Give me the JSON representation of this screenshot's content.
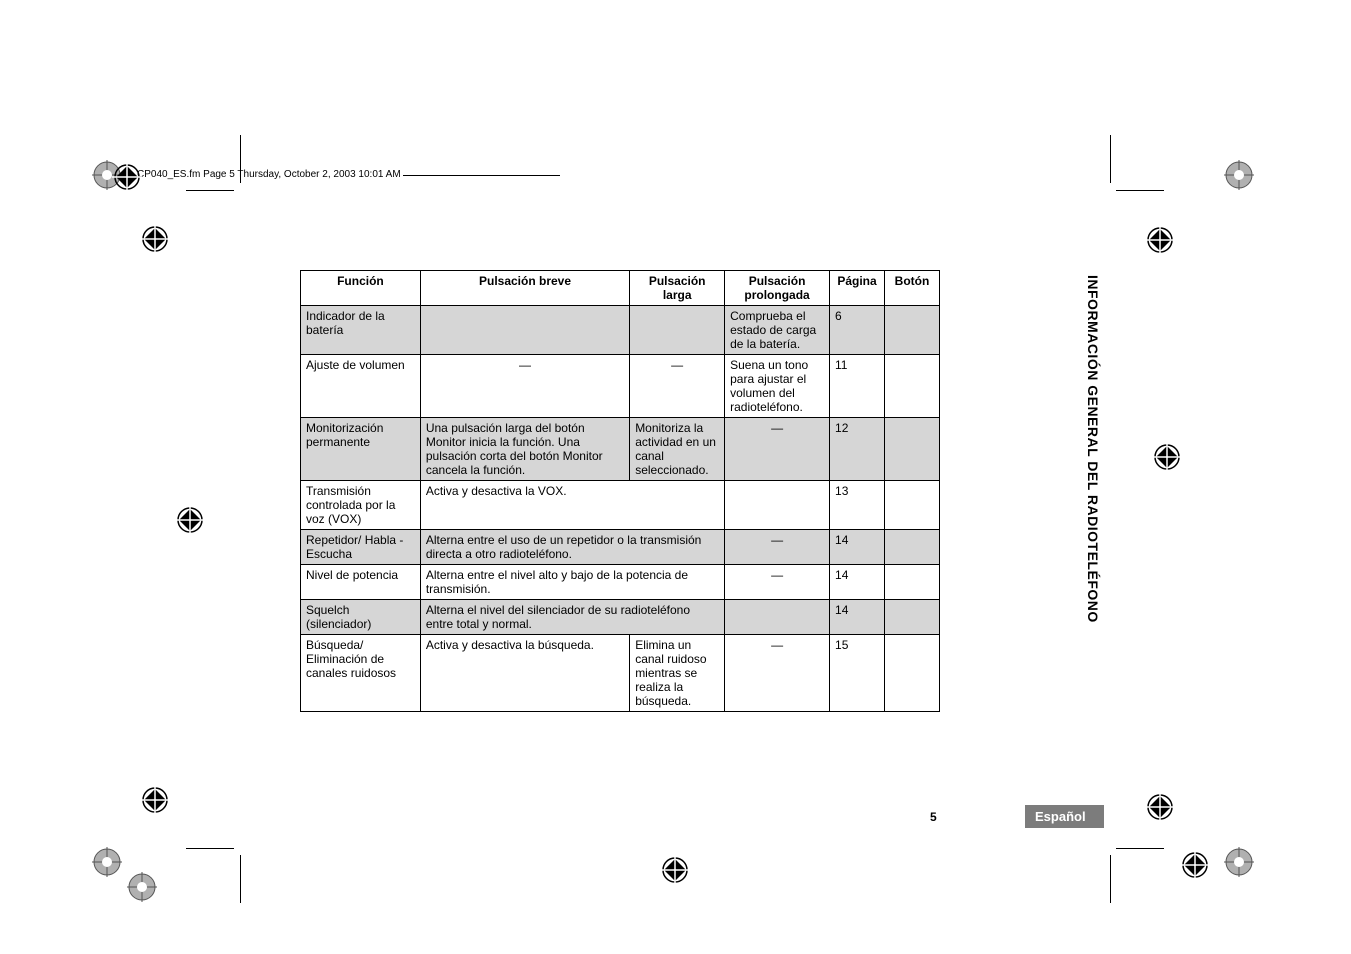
{
  "header_text": "CP040_ES.fm  Page 5  Thursday, October 2, 2003  10:01 AM",
  "sidebar_label": "INFORMACIÓN GENERAL DEL RADIOTELÉFONO",
  "page_number": "5",
  "language_badge": "Español",
  "table": {
    "headers": {
      "c1": "Función",
      "c2": "Pulsación breve",
      "c3": "Pulsación larga",
      "c4": "Pulsación prolongada",
      "c5": "Página",
      "c6": "Botón"
    },
    "rows": [
      {
        "shaded": true,
        "c1": "Indicador de la batería",
        "c2": "",
        "c3": "",
        "c4": "Comprueba el estado de carga de la batería.",
        "c5": "6",
        "c6": "",
        "span23": false
      },
      {
        "shaded": false,
        "c1": "Ajuste de volumen",
        "c2": "—",
        "c3": "—",
        "c4": "Suena un tono para ajustar el volumen del radioteléfono.",
        "c5": "11",
        "c6": "",
        "span23": false
      },
      {
        "shaded": true,
        "c1": "Monitorización permanente",
        "c2": "Una pulsación larga del botón Monitor inicia la función. Una pulsación corta del botón Monitor cancela la función.",
        "c3": "Monitoriza la actividad en un canal seleccionado.",
        "c4": "—",
        "c5": "12",
        "c6": "",
        "span23": false
      },
      {
        "shaded": false,
        "c1": "Transmisión controlada por la voz (VOX)",
        "c2_3": "Activa y desactiva la VOX.",
        "c4": "",
        "c5": "13",
        "c6": "",
        "span23": true
      },
      {
        "shaded": true,
        "c1": "Repetidor/ Habla - Escucha",
        "c2_3": "Alterna entre el uso de un repetidor o la transmisión directa a otro radioteléfono.",
        "c4": "—",
        "c5": "14",
        "c6": "",
        "span23": true
      },
      {
        "shaded": false,
        "c1": "Nivel de potencia",
        "c2_3": "Alterna entre el nivel alto y bajo de la potencia de transmisión.",
        "c4": "—",
        "c5": "14",
        "c6": "",
        "span23": true
      },
      {
        "shaded": true,
        "c1": "Squelch (silenciador)",
        "c2_3": "Alterna el nivel del silenciador de su radioteléfono entre total y normal.",
        "c4": "",
        "c5": "14",
        "c6": "",
        "span23": true
      },
      {
        "shaded": false,
        "c1": "Búsqueda/ Eliminación de canales ruidosos",
        "c2": "Activa y desactiva la búsqueda.",
        "c3": "Elimina un canal ruidoso mientras se realiza la búsqueda.",
        "c4": "—",
        "c5": "15",
        "c6": "",
        "span23": false
      }
    ]
  },
  "colors": {
    "shaded_bg": "#d6d6d6",
    "badge_bg": "#7c7c7c",
    "text": "#000000",
    "badge_text": "#ffffff"
  },
  "col_widths": {
    "c1": 120,
    "c2": 210,
    "c3": 95,
    "c4": 105,
    "c5": 55,
    "c6": 55
  }
}
